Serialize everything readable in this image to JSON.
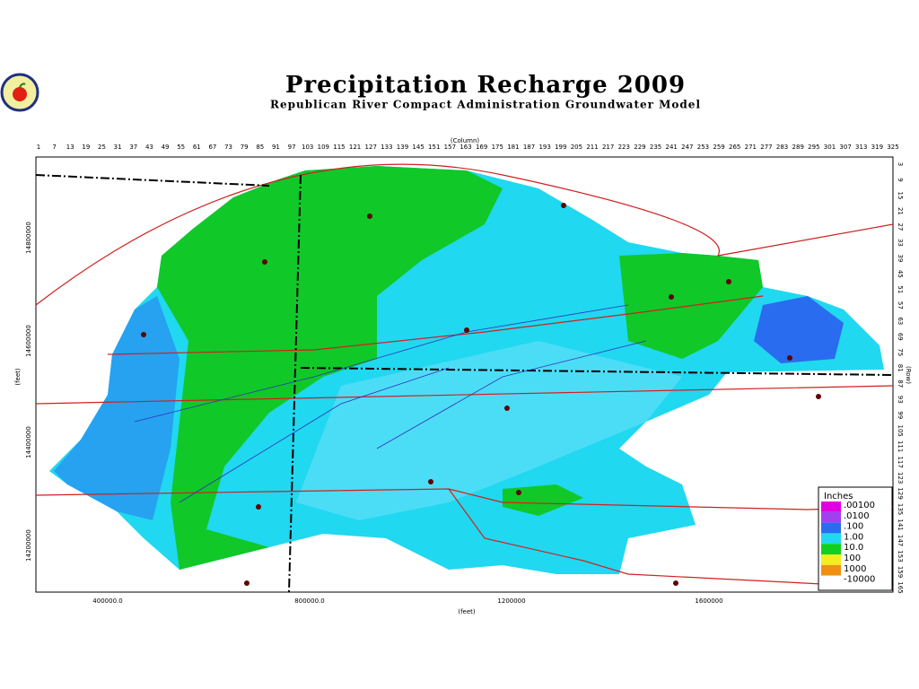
{
  "header": {
    "title": "Precipitation Recharge 2009",
    "subtitle": "Republican River Compact Administration Groundwater Model"
  },
  "columns": {
    "label": "(Column)",
    "ticks": [
      1,
      7,
      13,
      19,
      25,
      31,
      37,
      43,
      49,
      55,
      61,
      67,
      73,
      79,
      85,
      91,
      97,
      103,
      109,
      115,
      121,
      127,
      133,
      139,
      145,
      151,
      157,
      163,
      169,
      175,
      181,
      187,
      193,
      199,
      205,
      211,
      217,
      223,
      229,
      235,
      241,
      247,
      253,
      259,
      265,
      271,
      277,
      283,
      289,
      295,
      301,
      307,
      313,
      319,
      325
    ]
  },
  "rows": {
    "label": "(Row)",
    "ticks": [
      3,
      9,
      15,
      21,
      27,
      33,
      39,
      45,
      51,
      57,
      63,
      69,
      75,
      81,
      87,
      93,
      99,
      105,
      111,
      117,
      123,
      129,
      135,
      141,
      147,
      153,
      159,
      165
    ]
  },
  "x_axis": {
    "label": "(feet)",
    "ticks": [
      "400000.0",
      "800000.0",
      "1200000",
      "1600000"
    ]
  },
  "y_axis": {
    "label": "(feet)",
    "ticks": [
      "14800000",
      "14600000",
      "14400000",
      "14200000"
    ]
  },
  "legend": {
    "title": "Inches",
    "entries": [
      {
        "label": ".00100",
        "color": "#e000e0"
      },
      {
        "label": ".0100",
        "color": "#a040f0"
      },
      {
        "label": ".100",
        "color": "#2a6cf0"
      },
      {
        "label": "1.00",
        "color": "#20d8f0"
      },
      {
        "label": "10.0",
        "color": "#10d020"
      },
      {
        "label": "100",
        "color": "#f0f020"
      },
      {
        "label": "1000",
        "color": "#f09010"
      },
      {
        "label": "-10000",
        "color": "#ffffff"
      }
    ]
  }
}
